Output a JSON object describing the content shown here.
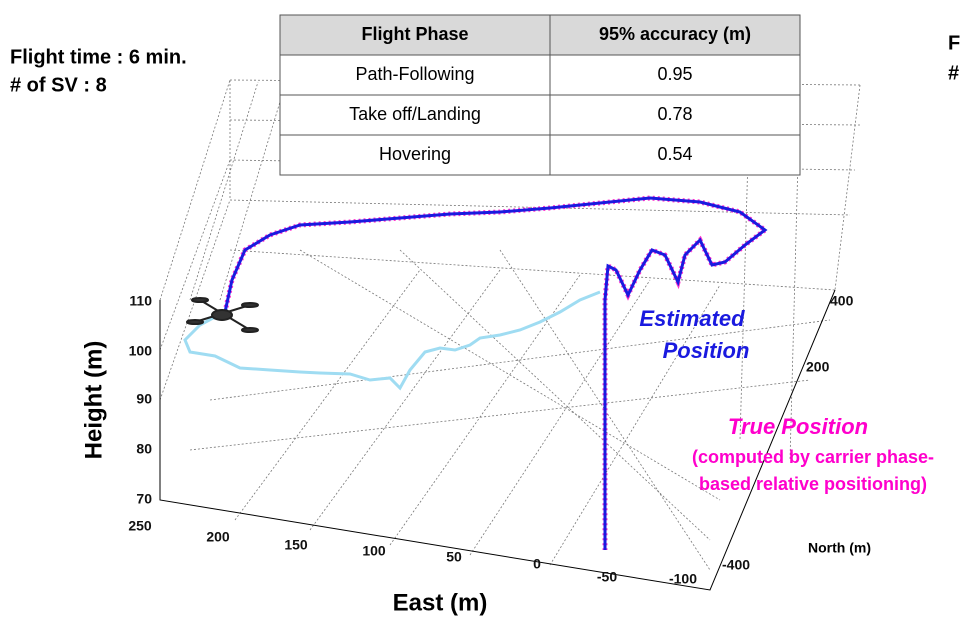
{
  "side_note": {
    "line1": "Flight time : 6 min.",
    "line2": "# of SV : 8",
    "cut1": "F",
    "cut2": "#"
  },
  "table": {
    "header": [
      "Flight Phase",
      "95% accuracy (m)"
    ],
    "rows": [
      [
        "Path-Following",
        "0.95"
      ],
      [
        "Take off/Landing",
        "0.78"
      ],
      [
        "Hovering",
        "0.54"
      ]
    ]
  },
  "plot": {
    "height_label": "Height (m)",
    "east_label": "East (m)",
    "north_label": "North (m)",
    "height_ticks": [
      110,
      100,
      90,
      80,
      70
    ],
    "east_ticks": [
      250,
      200,
      150,
      100,
      50,
      0,
      -50,
      -100
    ],
    "north_ticks": [
      400,
      200,
      -400
    ]
  },
  "annotations": {
    "estimated1": "Estimated",
    "estimated2": "Position",
    "true": "True Position",
    "true_note1": "(computed by carrier phase-",
    "true_note2": "based relative positioning)"
  }
}
